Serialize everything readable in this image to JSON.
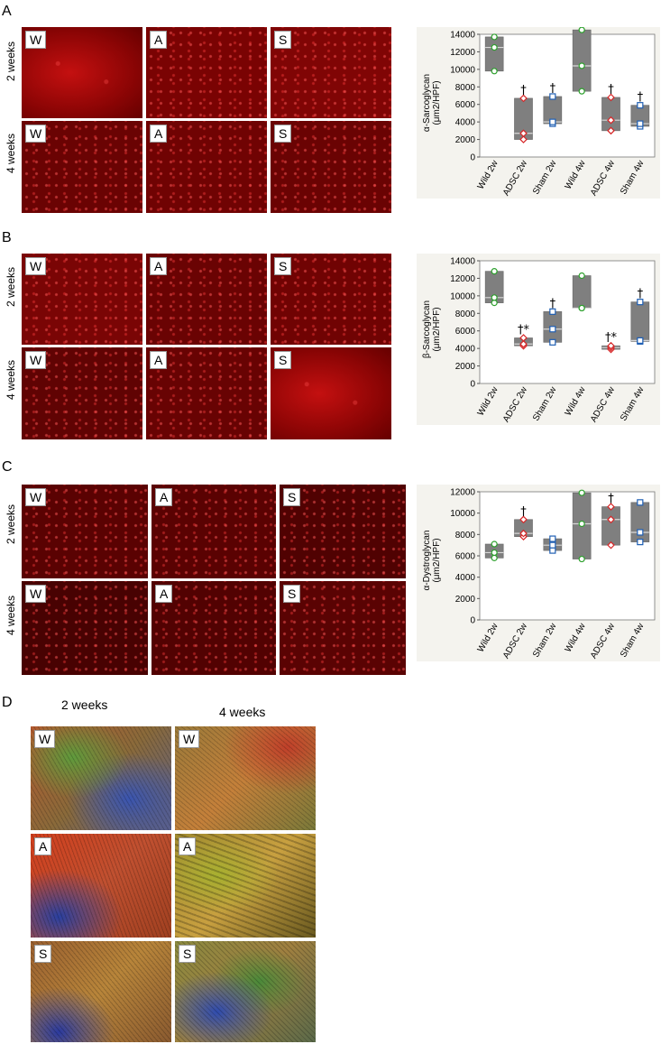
{
  "panels": [
    {
      "letter": "A",
      "rows": [
        "2 weeks",
        "4 weeks"
      ],
      "tiles": [
        "W",
        "A",
        "S",
        "W",
        "A",
        "S"
      ]
    },
    {
      "letter": "B",
      "rows": [
        "2 weeks",
        "4 weeks"
      ],
      "tiles": [
        "W",
        "A",
        "S",
        "W",
        "A",
        "S"
      ]
    },
    {
      "letter": "C",
      "rows": [
        "2 weeks",
        "4 weeks"
      ],
      "tiles": [
        "W",
        "A",
        "S",
        "W",
        "A",
        "S"
      ]
    }
  ],
  "panelD": {
    "letter": "D",
    "cols": [
      "2 weeks",
      "4 weeks"
    ],
    "tiles": [
      "W",
      "W",
      "A",
      "A",
      "S",
      "S"
    ]
  },
  "colors": {
    "wild": "#2ca02c",
    "adsc": "#d62728",
    "sham": "#1f5fb4",
    "box": "#7f7f7f",
    "median": "#d9d9d9"
  },
  "chart_data": [
    {
      "type": "box",
      "ylabel_line1": "α-Sarcoglycan",
      "ylabel_line2": "(μm2/HPF)",
      "categories": [
        "Wild 2w",
        "ADSC 2w",
        "Sham 2w",
        "Wild 4w",
        "ADSC 4w",
        "Sham 4w"
      ],
      "ylim": [
        0,
        14000
      ],
      "yticks": [
        0,
        2000,
        4000,
        6000,
        8000,
        10000,
        12000,
        14000
      ],
      "boxes": [
        {
          "low": 9800,
          "q1": 9800,
          "median": 12500,
          "q3": 13700,
          "high": 13700,
          "points": [
            9800,
            12500,
            13700
          ],
          "mark": ""
        },
        {
          "low": 2000,
          "q1": 2000,
          "median": 2700,
          "q3": 6700,
          "high": 6700,
          "points": [
            2000,
            2700,
            6700
          ],
          "mark": "†"
        },
        {
          "low": 3800,
          "q1": 3800,
          "median": 4000,
          "q3": 6900,
          "high": 6900,
          "points": [
            3800,
            4000,
            6900
          ],
          "mark": "†"
        },
        {
          "low": 7500,
          "q1": 7500,
          "median": 10400,
          "q3": 14500,
          "high": 14500,
          "points": [
            7500,
            10400,
            14500
          ],
          "mark": ""
        },
        {
          "low": 3000,
          "q1": 3000,
          "median": 4200,
          "q3": 6800,
          "high": 6800,
          "points": [
            3000,
            4200,
            6800
          ],
          "mark": "†"
        },
        {
          "low": 3500,
          "q1": 3500,
          "median": 3800,
          "q3": 5900,
          "high": 5900,
          "points": [
            3500,
            3800,
            5900
          ],
          "mark": "†"
        }
      ]
    },
    {
      "type": "box",
      "ylabel_line1": "β-Sarcoglycan",
      "ylabel_line2": "(μm2/HPF)",
      "categories": [
        "Wild 2w",
        "ADSC 2w",
        "Sham 2w",
        "Wild 4w",
        "ADSC 4w",
        "Sham 4w"
      ],
      "ylim": [
        0,
        14000
      ],
      "yticks": [
        0,
        2000,
        4000,
        6000,
        8000,
        10000,
        12000,
        14000
      ],
      "boxes": [
        {
          "low": 9200,
          "q1": 9200,
          "median": 9800,
          "q3": 12800,
          "high": 12800,
          "points": [
            9200,
            9800,
            12800
          ],
          "mark": ""
        },
        {
          "low": 4300,
          "q1": 4300,
          "median": 4500,
          "q3": 5200,
          "high": 5200,
          "points": [
            4300,
            4500,
            5200
          ],
          "mark": "†*"
        },
        {
          "low": 4700,
          "q1": 4700,
          "median": 6200,
          "q3": 8200,
          "high": 8200,
          "points": [
            4700,
            6200,
            8200
          ],
          "mark": "†"
        },
        {
          "low": 8600,
          "q1": 8600,
          "median": 8600,
          "q3": 12300,
          "high": 12300,
          "points": [
            8600,
            8600,
            12300
          ],
          "mark": ""
        },
        {
          "low": 3900,
          "q1": 3900,
          "median": 4100,
          "q3": 4300,
          "high": 4300,
          "points": [
            3900,
            4100,
            4300
          ],
          "mark": "†*"
        },
        {
          "low": 4800,
          "q1": 4800,
          "median": 4900,
          "q3": 9300,
          "high": 9300,
          "points": [
            4800,
            4900,
            9300
          ],
          "mark": "†"
        }
      ]
    },
    {
      "type": "box",
      "ylabel_line1": "α-Dystroglycan",
      "ylabel_line2": "(μm2/HPF)",
      "categories": [
        "Wild 2w",
        "ADSC 2w",
        "Sham 2w",
        "Wild 4w",
        "ADSC 4w",
        "Sham 4w"
      ],
      "ylim": [
        0,
        12000
      ],
      "yticks": [
        0,
        2000,
        4000,
        6000,
        8000,
        10000,
        12000
      ],
      "boxes": [
        {
          "low": 5800,
          "q1": 5800,
          "median": 6300,
          "q3": 7100,
          "high": 7100,
          "points": [
            5800,
            6300,
            7100
          ],
          "mark": ""
        },
        {
          "low": 7800,
          "q1": 7800,
          "median": 8100,
          "q3": 9400,
          "high": 9400,
          "points": [
            7800,
            8100,
            9400
          ],
          "mark": "†"
        },
        {
          "low": 6500,
          "q1": 6500,
          "median": 7000,
          "q3": 7600,
          "high": 7600,
          "points": [
            6500,
            7000,
            7600
          ],
          "mark": ""
        },
        {
          "low": 5700,
          "q1": 5700,
          "median": 9000,
          "q3": 11900,
          "high": 11900,
          "points": [
            5700,
            9000,
            11900
          ],
          "mark": ""
        },
        {
          "low": 7000,
          "q1": 7000,
          "median": 9400,
          "q3": 10600,
          "high": 10600,
          "points": [
            7000,
            9400,
            10600
          ],
          "mark": "†"
        },
        {
          "low": 7300,
          "q1": 7300,
          "median": 8200,
          "q3": 11000,
          "high": 11000,
          "points": [
            7300,
            8200,
            11000
          ],
          "mark": ""
        }
      ]
    }
  ]
}
